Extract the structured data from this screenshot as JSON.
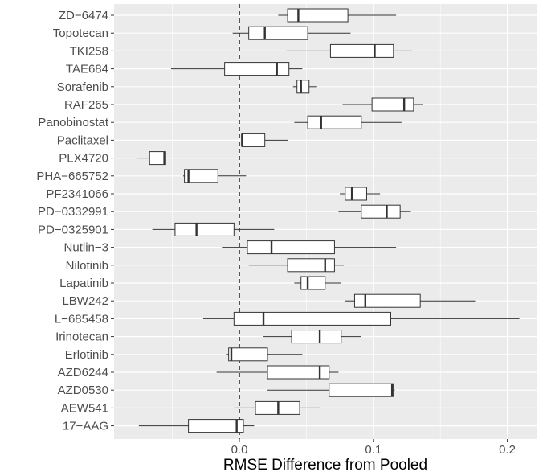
{
  "chart_data": {
    "type": "boxplot",
    "orientation": "horizontal",
    "title": "",
    "xlabel": "RMSE Difference from Pooled",
    "ylabel": "",
    "xlim": [
      -0.093,
      0.222
    ],
    "x_ticks": [
      0.0,
      0.1,
      0.2
    ],
    "x_tick_labels": [
      "0.0",
      "0.1",
      "0.2"
    ],
    "reference_line": {
      "x": 0.0,
      "style": "dashed"
    },
    "grid": true,
    "panel_background": "#ebebeb",
    "grid_color": "#ffffff",
    "box_fill": "#ffffff",
    "box_stroke": "#333333",
    "categories": [
      "ZD-6474",
      "Topotecan",
      "TKI258",
      "TAE684",
      "Sorafenib",
      "RAF265",
      "Panobinostat",
      "Paclitaxel",
      "PLX4720",
      "PHA-665752",
      "PF2341066",
      "PD-0332991",
      "PD-0325901",
      "Nutlin-3",
      "Nilotinib",
      "Lapatinib",
      "LBW242",
      "L-685458",
      "Irinotecan",
      "Erlotinib",
      "AZD6244",
      "AZD0530",
      "AEW541",
      "17-AAG"
    ],
    "category_labels": [
      "ZD−6474",
      "Topotecan",
      "TKI258",
      "TAE684",
      "Sorafenib",
      "RAF265",
      "Panobinostat",
      "Paclitaxel",
      "PLX4720",
      "PHA−665752",
      "PF2341066",
      "PD−0332991",
      "PD−0325901",
      "Nutlin−3",
      "Nilotinib",
      "Lapatinib",
      "LBW242",
      "L−685458",
      "Irinotecan",
      "Erlotinib",
      "AZD6244",
      "AZD0530",
      "AEW541",
      "17−AAG"
    ],
    "boxes": [
      {
        "min": 0.029,
        "q1": 0.036,
        "median": 0.044,
        "q3": 0.081,
        "max": 0.117
      },
      {
        "min": -0.005,
        "q1": 0.007,
        "median": 0.019,
        "q3": 0.051,
        "max": 0.083
      },
      {
        "min": 0.035,
        "q1": 0.068,
        "median": 0.101,
        "q3": 0.115,
        "max": 0.129
      },
      {
        "min": -0.051,
        "q1": -0.011,
        "median": 0.028,
        "q3": 0.037,
        "max": 0.047
      },
      {
        "min": 0.04,
        "q1": 0.043,
        "median": 0.046,
        "q3": 0.052,
        "max": 0.058
      },
      {
        "min": 0.077,
        "q1": 0.099,
        "median": 0.123,
        "q3": 0.13,
        "max": 0.137
      },
      {
        "min": 0.041,
        "q1": 0.051,
        "median": 0.061,
        "q3": 0.091,
        "max": 0.121
      },
      {
        "min": 0.002,
        "q1": 0.002,
        "median": 0.002,
        "q3": 0.019,
        "max": 0.036
      },
      {
        "min": -0.077,
        "q1": -0.067,
        "median": -0.056,
        "q3": -0.055,
        "max": -0.055
      },
      {
        "min": -0.042,
        "q1": -0.041,
        "median": -0.038,
        "q3": -0.016,
        "max": 0.005
      },
      {
        "min": 0.075,
        "q1": 0.079,
        "median": 0.084,
        "q3": 0.095,
        "max": 0.105
      },
      {
        "min": 0.074,
        "q1": 0.091,
        "median": 0.11,
        "q3": 0.12,
        "max": 0.128
      },
      {
        "min": -0.065,
        "q1": -0.048,
        "median": -0.032,
        "q3": -0.004,
        "max": 0.026
      },
      {
        "min": -0.013,
        "q1": 0.006,
        "median": 0.024,
        "q3": 0.071,
        "max": 0.117
      },
      {
        "min": 0.007,
        "q1": 0.036,
        "median": 0.064,
        "q3": 0.071,
        "max": 0.078
      },
      {
        "min": 0.041,
        "q1": 0.046,
        "median": 0.051,
        "q3": 0.064,
        "max": 0.076
      },
      {
        "min": 0.079,
        "q1": 0.086,
        "median": 0.094,
        "q3": 0.135,
        "max": 0.176
      },
      {
        "min": -0.027,
        "q1": -0.004,
        "median": 0.018,
        "q3": 0.113,
        "max": 0.209
      },
      {
        "min": 0.018,
        "q1": 0.039,
        "median": 0.06,
        "q3": 0.076,
        "max": 0.091
      },
      {
        "min": -0.01,
        "q1": -0.008,
        "median": -0.006,
        "q3": 0.021,
        "max": 0.047
      },
      {
        "min": -0.017,
        "q1": 0.021,
        "median": 0.06,
        "q3": 0.067,
        "max": 0.074
      },
      {
        "min": 0.021,
        "q1": 0.067,
        "median": 0.114,
        "q3": 0.115,
        "max": 0.116
      },
      {
        "min": -0.004,
        "q1": 0.012,
        "median": 0.029,
        "q3": 0.045,
        "max": 0.06
      },
      {
        "min": -0.075,
        "q1": -0.038,
        "median": -0.002,
        "q3": 0.003,
        "max": 0.011
      }
    ]
  }
}
